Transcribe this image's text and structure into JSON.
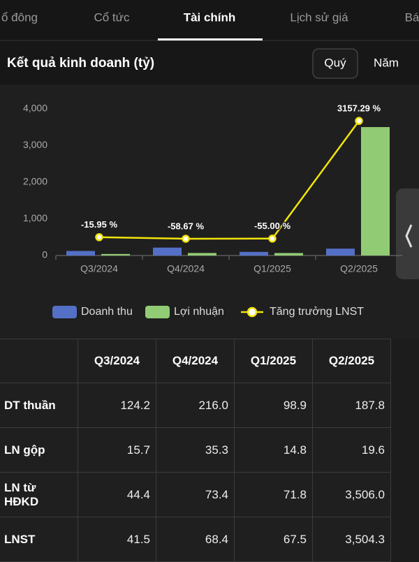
{
  "tabs": [
    "ổ đông",
    "Cổ tức",
    "Tài chính",
    "Lịch sử giá",
    "Bá"
  ],
  "active_tab": 2,
  "section": {
    "title": "Kết quả kinh doanh (tỷ)",
    "toggles": [
      "Quý",
      "Năm"
    ]
  },
  "chart_data": {
    "type": "bar",
    "categories": [
      "Q3/2024",
      "Q4/2024",
      "Q1/2025",
      "Q2/2025"
    ],
    "series": [
      {
        "name": "Doanh thu",
        "color": "#5470c6",
        "values": [
          124.2,
          216,
          98.9,
          187.8
        ]
      },
      {
        "name": "Lợi nhuận",
        "color": "#91cc75",
        "values": [
          41.5,
          68.4,
          67.5,
          3504.3
        ]
      },
      {
        "name": "Tăng trưởng LNST",
        "type": "line",
        "axis": "y2",
        "color": "#f2e40b",
        "values": [
          -15.95,
          -58.67,
          -55.0,
          3157.29
        ],
        "value_labels": [
          "-15.95 %",
          "-58.67 %",
          "-55.00 %",
          "3157.29 %"
        ]
      }
    ],
    "ylim": [
      0,
      4000
    ],
    "yticks": [
      0,
      {
        "value": 1000,
        "label": "1,000"
      },
      {
        "value": 2000,
        "label": "2,000"
      },
      {
        "value": 3000,
        "label": "3,000"
      },
      {
        "value": 4000,
        "label": "4,000"
      }
    ],
    "y2lim": [
      -516,
      3484
    ],
    "legend": "bottom"
  },
  "table": {
    "header": [
      "Q3/2024",
      "Q4/2024",
      "Q1/2025",
      "Q2/2025"
    ],
    "rows": [
      [
        "DT thuần",
        "124.2",
        "216.0",
        "98.9",
        "187.8"
      ],
      [
        "LN gộp",
        "15.7",
        "35.3",
        "14.8",
        "19.6"
      ],
      [
        "LN từ HĐKD",
        "44.4",
        "73.4",
        "71.8",
        "3,506.0"
      ],
      [
        "LNST",
        "41.5",
        "68.4",
        "67.5",
        "3,504.3"
      ]
    ]
  }
}
